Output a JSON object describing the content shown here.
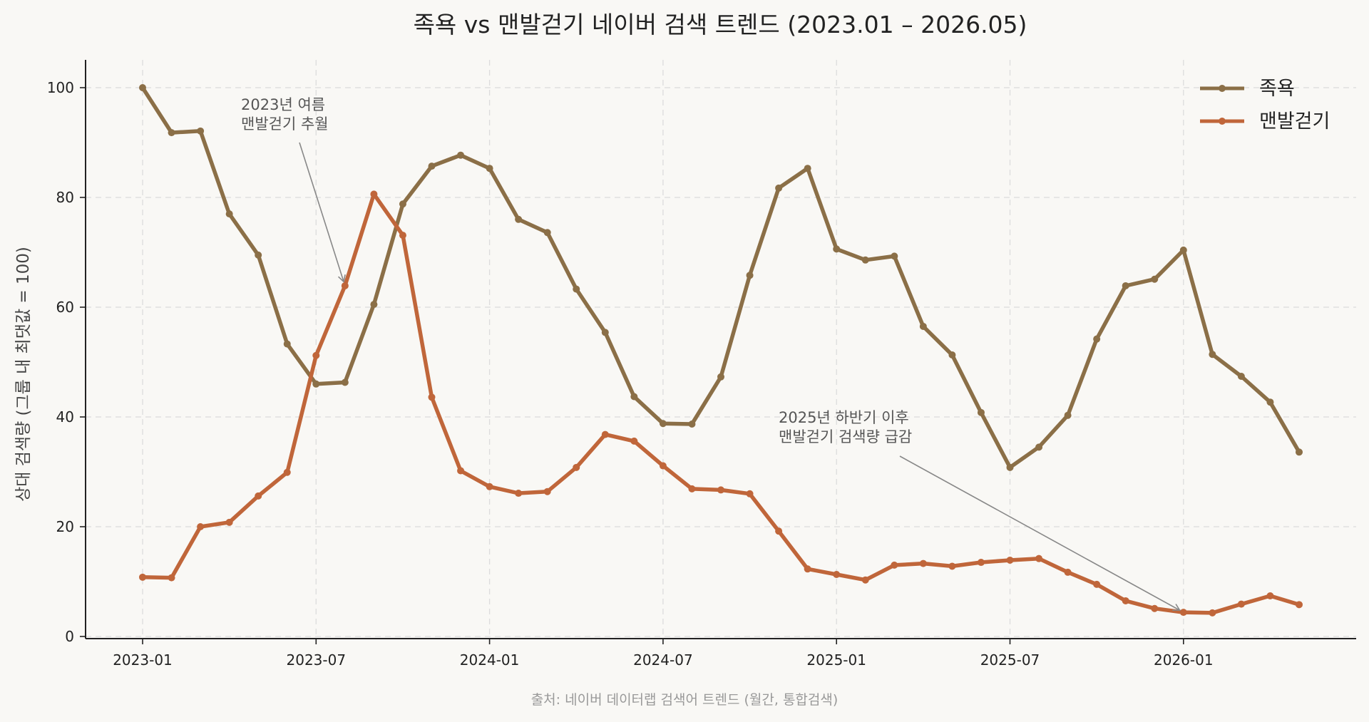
{
  "chart_data": {
    "type": "line",
    "title": "족욕 vs 맨발걷기 네이버 검색 트렌드 (2023.01 – 2026.05)",
    "ylabel": "상대 검색량 (그룹 내 최댓값 = 100)",
    "xlabel": "",
    "source": "출처: 네이버 데이터랩 검색어 트렌드 (월간, 통합검색)",
    "ylim": [
      0,
      105
    ],
    "yticks": [
      0,
      20,
      40,
      60,
      80,
      100
    ],
    "xticks": [
      "2023-01",
      "2023-07",
      "2024-01",
      "2024-07",
      "2025-01",
      "2025-07",
      "2026-01"
    ],
    "grid": true,
    "legend_position": "top-right",
    "x": [
      "2023-01",
      "2023-02",
      "2023-03",
      "2023-04",
      "2023-05",
      "2023-06",
      "2023-07",
      "2023-08",
      "2023-09",
      "2023-10",
      "2023-11",
      "2023-12",
      "2024-01",
      "2024-02",
      "2024-03",
      "2024-04",
      "2024-05",
      "2024-06",
      "2024-07",
      "2024-08",
      "2024-09",
      "2024-10",
      "2024-11",
      "2024-12",
      "2025-01",
      "2025-02",
      "2025-03",
      "2025-04",
      "2025-05",
      "2025-06",
      "2025-07",
      "2025-08",
      "2025-09",
      "2025-10",
      "2025-11",
      "2025-12",
      "2026-01",
      "2026-02",
      "2026-03",
      "2026-04",
      "2026-05"
    ],
    "series": [
      {
        "name": "족욕",
        "color": "#8b6f47",
        "values": [
          100,
          91.8,
          92.1,
          77,
          69.5,
          53.3,
          46,
          46.3,
          60.5,
          78.8,
          85.7,
          87.7,
          85.3,
          76,
          73.6,
          63.3,
          55.4,
          43.7,
          38.8,
          38.7,
          47.3,
          65.8,
          81.7,
          85.3,
          70.6,
          68.6,
          69.3,
          56.5,
          51.3,
          40.8,
          30.8,
          34.5,
          40.3,
          54.2,
          63.9,
          65.1,
          70.4,
          51.4,
          47.4,
          42.7,
          33.6
        ]
      },
      {
        "name": "맨발걷기",
        "color": "#c0663a",
        "values": [
          10.8,
          10.7,
          20,
          20.8,
          25.6,
          29.9,
          51.2,
          63.9,
          80.6,
          73.1,
          43.6,
          30.2,
          27.3,
          26.1,
          26.4,
          30.8,
          36.8,
          35.6,
          31.1,
          26.9,
          26.7,
          26,
          19.2,
          12.3,
          11.3,
          10.3,
          13,
          13.3,
          12.8,
          13.5,
          13.9,
          14.2,
          11.7,
          9.5,
          6.5,
          5.1,
          4.4,
          4.3,
          5.9,
          7.4,
          5.8
        ]
      }
    ],
    "annotations": [
      {
        "lines": [
          "2023년 여름",
          "맨발걷기 추월"
        ],
        "target_x": "2023-08",
        "target_y": 63.9
      },
      {
        "lines": [
          "2025년 하반기 이후",
          "맨발걷기 검색량 급감"
        ],
        "target_x": "2026-01",
        "target_y": 4.4
      }
    ]
  }
}
